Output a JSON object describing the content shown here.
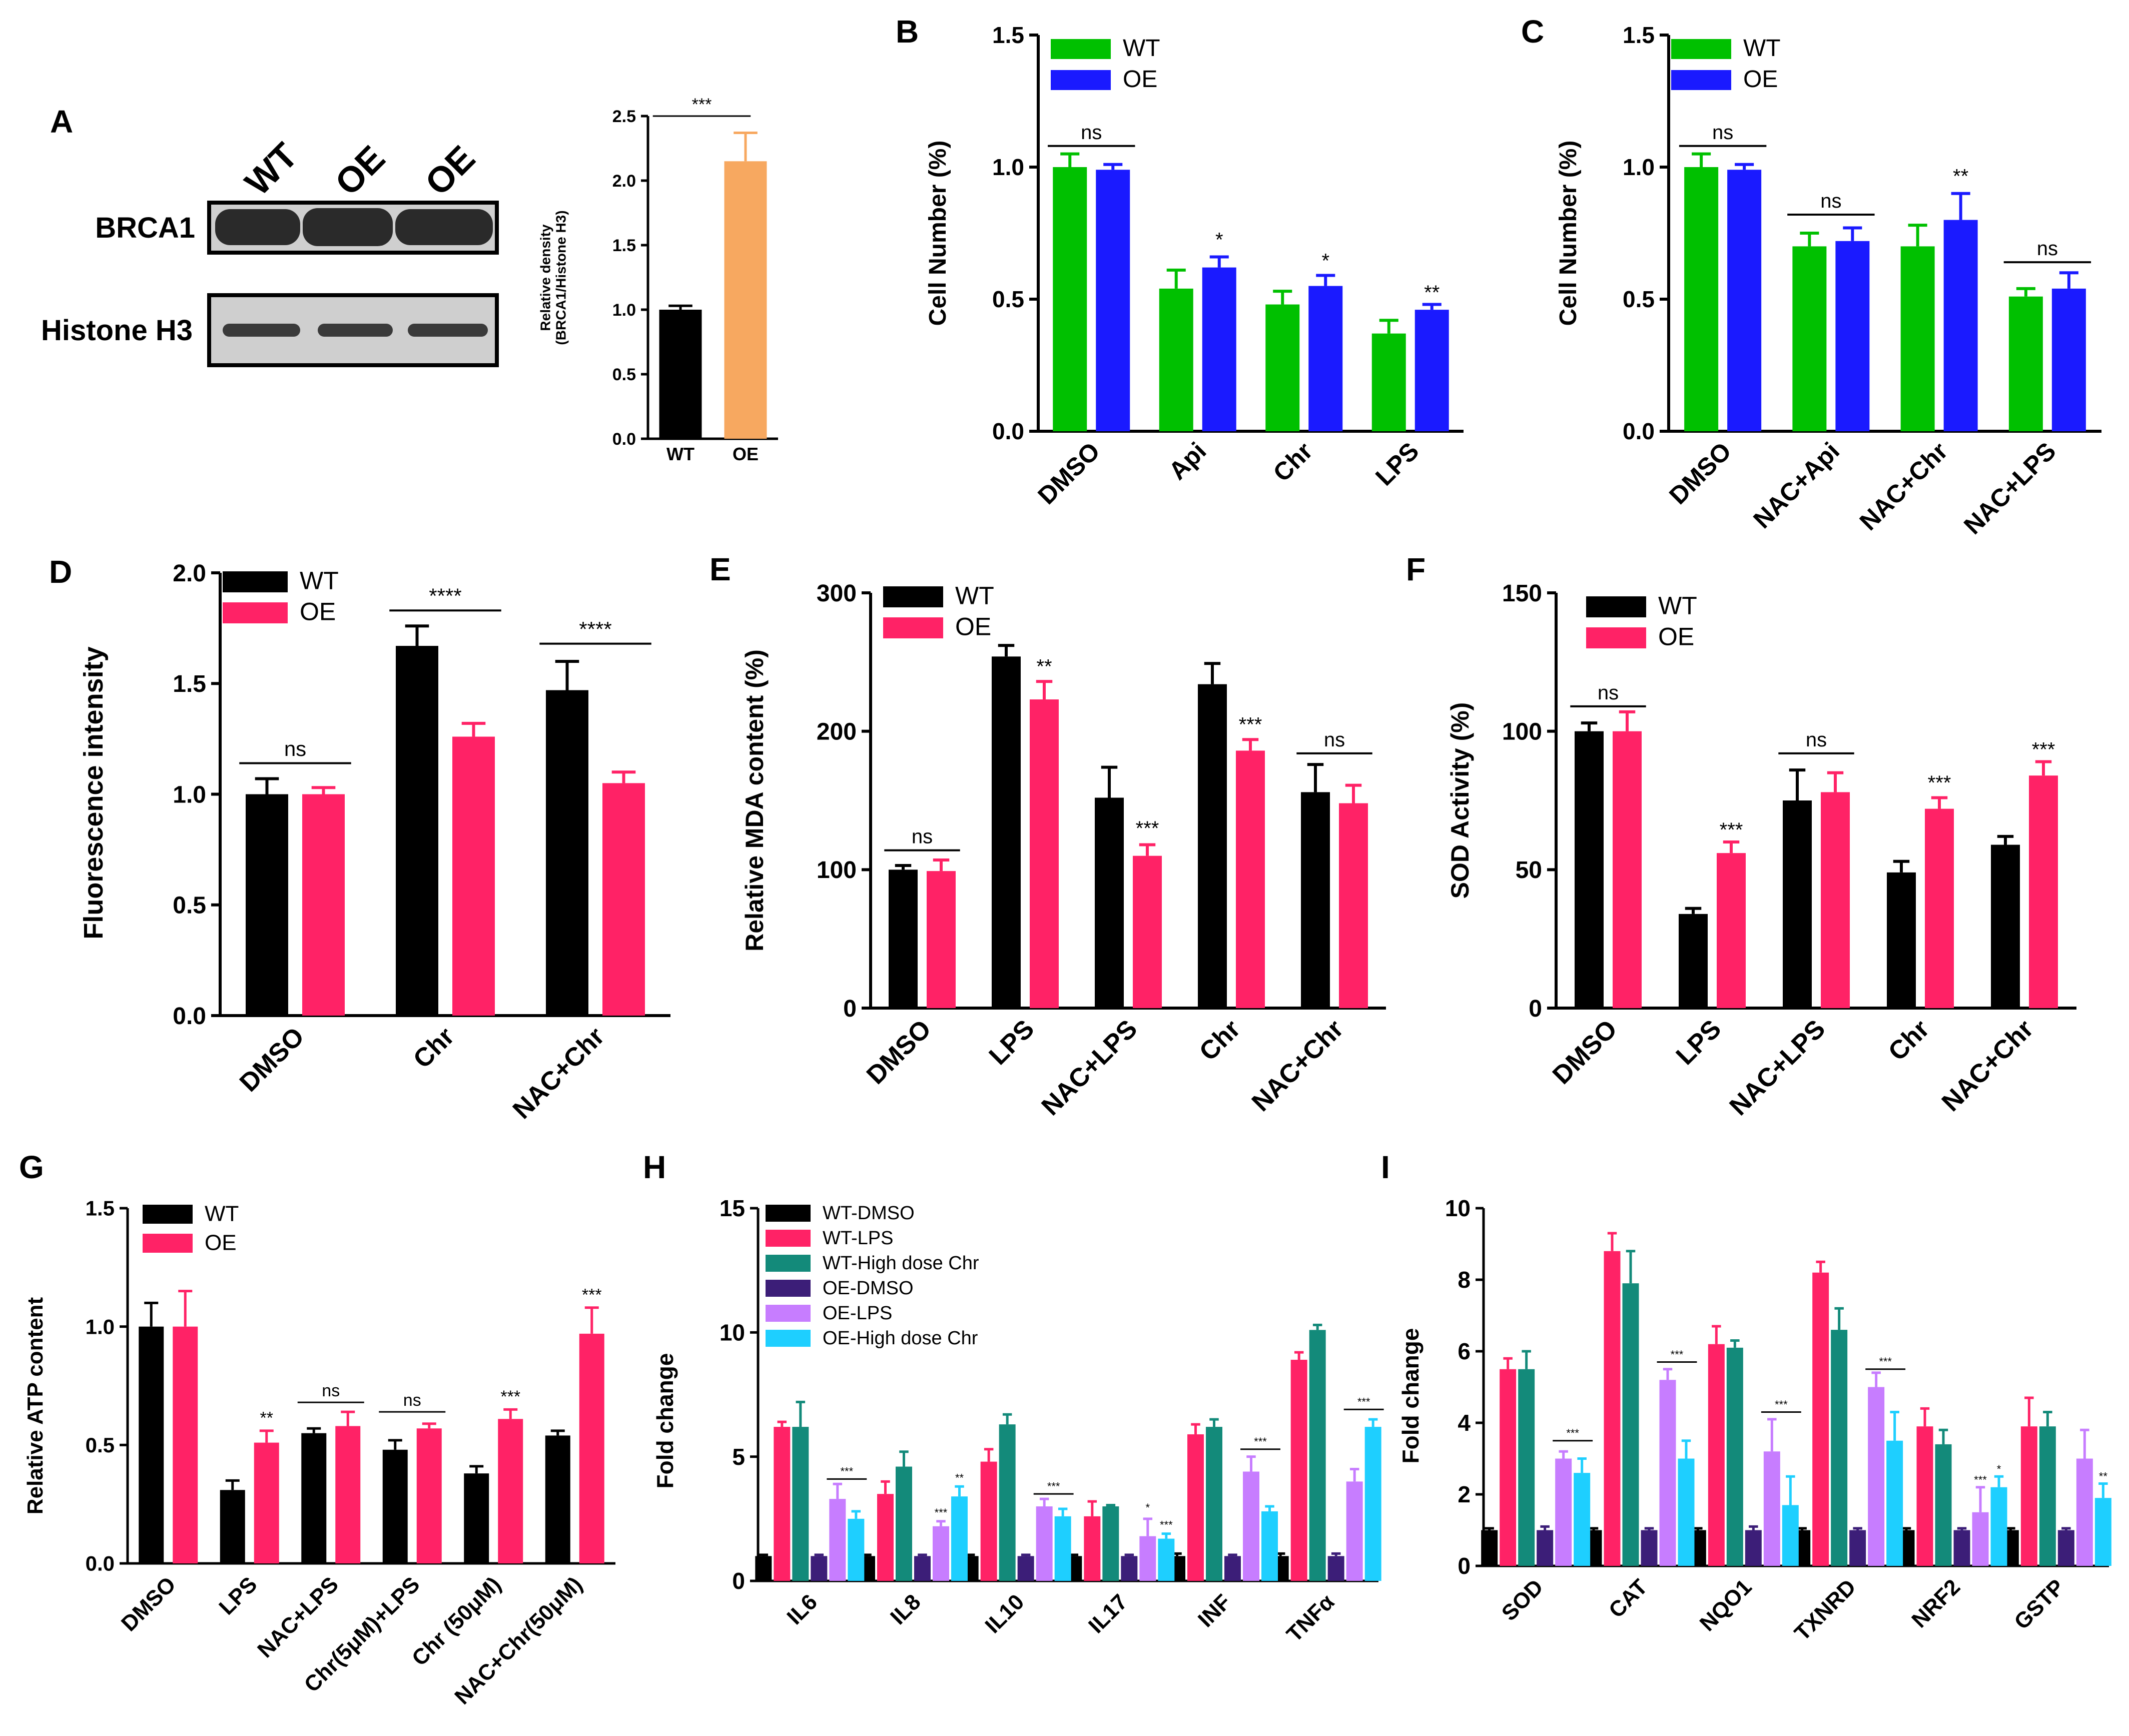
{
  "colors": {
    "black": "#000000",
    "green": "#00c000",
    "blue": "#1a1aff",
    "pink": "#ff2266",
    "orange": "#f7a860",
    "teal": "#138a7a",
    "purple": "#3c1e78",
    "lilac": "#c77dff",
    "cyan": "#1ecfff",
    "blot_bg": "#cfcfcf",
    "blot_band": "#2a2a2a"
  },
  "blot": {
    "letter": "A",
    "lane_labels": [
      "WT",
      "OE",
      "OE"
    ],
    "row_labels": [
      "BRCA1",
      "Histone H3"
    ]
  },
  "chart_data": [
    {
      "id": "A2",
      "type": "bar",
      "letter": "",
      "categories": [
        "WT",
        "OE"
      ],
      "series": [
        {
          "color": "black",
          "values": [
            1.0,
            2.15
          ],
          "errors": [
            0.03,
            0.22
          ]
        }
      ],
      "bar_colors": [
        "black",
        "orange"
      ],
      "ylabel": "Relative density\n(BRCA1/Histone H3)",
      "ylim": [
        0,
        2.5
      ],
      "yticks": [
        "0.0",
        "0.5",
        "1.0",
        "1.5",
        "2.0",
        "2.5"
      ],
      "tick_values": [
        0,
        0.5,
        1,
        1.5,
        2,
        2.5
      ],
      "legend": [],
      "annotations": [
        {
          "group": 0,
          "text": "***",
          "bracket": [
            0,
            1
          ],
          "y": 2.5
        }
      ],
      "xlabel_rotate": false
    },
    {
      "id": "B",
      "type": "bar",
      "letter": "B",
      "categories": [
        "DMSO",
        "Api",
        "Chr",
        "LPS"
      ],
      "series": [
        {
          "name": "WT",
          "color": "green",
          "values": [
            1.0,
            0.54,
            0.48,
            0.37
          ],
          "errors": [
            0.05,
            0.07,
            0.05,
            0.05
          ]
        },
        {
          "name": "OE",
          "color": "blue",
          "values": [
            0.99,
            0.62,
            0.55,
            0.46
          ],
          "errors": [
            0.02,
            0.04,
            0.04,
            0.02
          ]
        }
      ],
      "ylabel": "Cell Number (%)",
      "ylim": [
        0,
        1.5
      ],
      "yticks": [
        "0.0",
        "0.5",
        "1.0",
        "1.5"
      ],
      "tick_values": [
        0,
        0.5,
        1,
        1.5
      ],
      "legend": [
        "WT",
        "OE"
      ],
      "annotations": [
        {
          "group": 0,
          "text": "ns",
          "bracket": [
            0,
            1
          ],
          "y": 1.08
        },
        {
          "group": 1,
          "text": "*",
          "series": 1,
          "y": 0.7
        },
        {
          "group": 2,
          "text": "*",
          "series": 1,
          "y": 0.62
        },
        {
          "group": 3,
          "text": "**",
          "series": 1,
          "y": 0.5
        }
      ],
      "xlabel_rotate": true
    },
    {
      "id": "C",
      "type": "bar",
      "letter": "C",
      "categories": [
        "DMSO",
        "NAC+Api",
        "NAC+Chr",
        "NAC+LPS"
      ],
      "series": [
        {
          "name": "WT",
          "color": "green",
          "values": [
            1.0,
            0.7,
            0.7,
            0.51
          ],
          "errors": [
            0.05,
            0.05,
            0.08,
            0.03
          ]
        },
        {
          "name": "OE",
          "color": "blue",
          "values": [
            0.99,
            0.72,
            0.8,
            0.54
          ],
          "errors": [
            0.02,
            0.05,
            0.1,
            0.06
          ]
        }
      ],
      "ylabel": "Cell Number (%)",
      "ylim": [
        0,
        1.5
      ],
      "yticks": [
        "0.0",
        "0.5",
        "1.0",
        "1.5"
      ],
      "tick_values": [
        0,
        0.5,
        1,
        1.5
      ],
      "legend": [
        "WT",
        "OE"
      ],
      "annotations": [
        {
          "group": 0,
          "text": "ns",
          "bracket": [
            0,
            1
          ],
          "y": 1.08
        },
        {
          "group": 1,
          "text": "ns",
          "bracket": [
            0,
            1
          ],
          "y": 0.82
        },
        {
          "group": 2,
          "text": "**",
          "series": 1,
          "y": 0.94
        },
        {
          "group": 3,
          "text": "ns",
          "bracket": [
            0,
            1
          ],
          "y": 0.64
        }
      ],
      "xlabel_rotate": true
    },
    {
      "id": "D",
      "type": "bar",
      "letter": "D",
      "categories": [
        "DMSO",
        "Chr",
        "NAC+Chr"
      ],
      "series": [
        {
          "name": "WT",
          "color": "black",
          "values": [
            1.0,
            1.67,
            1.47
          ],
          "errors": [
            0.07,
            0.09,
            0.13
          ]
        },
        {
          "name": "OE",
          "color": "pink",
          "values": [
            1.0,
            1.26,
            1.05
          ],
          "errors": [
            0.03,
            0.06,
            0.05
          ]
        }
      ],
      "ylabel": "Fluorescence intensity",
      "ylim": [
        0,
        2.0
      ],
      "yticks": [
        "0.0",
        "0.5",
        "1.0",
        "1.5",
        "2.0"
      ],
      "tick_values": [
        0,
        0.5,
        1,
        1.5,
        2
      ],
      "legend": [
        "WT",
        "OE"
      ],
      "annotations": [
        {
          "group": 0,
          "text": "ns",
          "bracket": [
            0,
            1
          ],
          "y": 1.14
        },
        {
          "group": 1,
          "text": "****",
          "bracket": [
            0,
            1
          ],
          "y": 1.83
        },
        {
          "group": 2,
          "text": "****",
          "bracket": [
            0,
            1
          ],
          "y": 1.68
        }
      ],
      "xlabel_rotate": true
    },
    {
      "id": "E",
      "type": "bar",
      "letter": "E",
      "categories": [
        "DMSO",
        "LPS",
        "NAC+LPS",
        "Chr",
        "NAC+Chr"
      ],
      "series": [
        {
          "name": "WT",
          "color": "black",
          "values": [
            100,
            254,
            152,
            234,
            156
          ],
          "errors": [
            3,
            8,
            22,
            15,
            20
          ]
        },
        {
          "name": "OE",
          "color": "pink",
          "values": [
            99,
            223,
            110,
            186,
            148
          ],
          "errors": [
            8,
            13,
            8,
            8,
            13
          ]
        }
      ],
      "ylabel": "Relative MDA content (%)",
      "ylim": [
        0,
        300
      ],
      "yticks": [
        "0",
        "100",
        "200",
        "300"
      ],
      "tick_values": [
        0,
        100,
        200,
        300
      ],
      "legend": [
        "WT",
        "OE"
      ],
      "annotations": [
        {
          "group": 0,
          "text": "ns",
          "bracket": [
            0,
            1
          ],
          "y": 114
        },
        {
          "group": 1,
          "text": "**",
          "series": 1,
          "y": 242
        },
        {
          "group": 2,
          "text": "***",
          "series": 1,
          "y": 125
        },
        {
          "group": 3,
          "text": "***",
          "series": 1,
          "y": 200
        },
        {
          "group": 4,
          "text": "ns",
          "bracket": [
            0,
            1
          ],
          "y": 184
        }
      ],
      "xlabel_rotate": true
    },
    {
      "id": "F",
      "type": "bar",
      "letter": "F",
      "categories": [
        "DMSO",
        "LPS",
        "NAC+LPS",
        "Chr",
        "NAC+Chr"
      ],
      "series": [
        {
          "name": "WT",
          "color": "black",
          "values": [
            100,
            34,
            75,
            49,
            59
          ],
          "errors": [
            3,
            2,
            11,
            4,
            3
          ]
        },
        {
          "name": "OE",
          "color": "pink",
          "values": [
            100,
            56,
            78,
            72,
            84
          ],
          "errors": [
            7,
            4,
            7,
            4,
            5
          ]
        }
      ],
      "ylabel": "SOD Activity (%)",
      "ylim": [
        0,
        150
      ],
      "yticks": [
        "0",
        "50",
        "100",
        "150"
      ],
      "tick_values": [
        0,
        50,
        100,
        150
      ],
      "legend": [
        "WT",
        "OE"
      ],
      "annotations": [
        {
          "group": 0,
          "text": "ns",
          "bracket": [
            0,
            1
          ],
          "y": 109
        },
        {
          "group": 1,
          "text": "***",
          "series": 1,
          "y": 62
        },
        {
          "group": 2,
          "text": "ns",
          "bracket": [
            0,
            1
          ],
          "y": 92
        },
        {
          "group": 3,
          "text": "***",
          "series": 1,
          "y": 79
        },
        {
          "group": 4,
          "text": "***",
          "series": 1,
          "y": 91
        }
      ],
      "xlabel_rotate": true
    },
    {
      "id": "G",
      "type": "bar",
      "letter": "G",
      "categories": [
        "DMSO",
        "LPS",
        "NAC+LPS",
        "Chr(5μM)+LPS",
        "Chr (50μM)",
        "NAC+Chr(50μM)"
      ],
      "series": [
        {
          "name": "WT",
          "color": "black",
          "values": [
            1.0,
            0.31,
            0.55,
            0.48,
            0.38,
            0.54
          ],
          "errors": [
            0.1,
            0.04,
            0.02,
            0.04,
            0.03,
            0.02
          ]
        },
        {
          "name": "OE",
          "color": "pink",
          "values": [
            1.0,
            0.51,
            0.58,
            0.57,
            0.61,
            0.97
          ],
          "errors": [
            0.15,
            0.05,
            0.06,
            0.02,
            0.04,
            0.11
          ]
        }
      ],
      "ylabel": "Relative ATP  content",
      "ylim": [
        0,
        1.5
      ],
      "yticks": [
        "0.0",
        "0.5",
        "1.0",
        "1.5"
      ],
      "tick_values": [
        0,
        0.5,
        1,
        1.5
      ],
      "legend": [
        "WT",
        "OE"
      ],
      "annotations": [
        {
          "group": 1,
          "text": "**",
          "series": 1,
          "y": 0.59
        },
        {
          "group": 2,
          "text": "ns",
          "bracket": [
            0,
            1
          ],
          "y": 0.68
        },
        {
          "group": 3,
          "text": "ns",
          "bracket": [
            0,
            1
          ],
          "y": 0.64
        },
        {
          "group": 4,
          "text": "***",
          "series": 1,
          "y": 0.68
        },
        {
          "group": 5,
          "text": "***",
          "series": 1,
          "y": 1.11
        }
      ],
      "xlabel_rotate": true
    },
    {
      "id": "H",
      "type": "bar",
      "letter": "H",
      "categories": [
        "IL6",
        "IL8",
        "IL10",
        "IL17",
        "INF",
        "TNFα"
      ],
      "series": [
        {
          "name": "WT-DMSO",
          "color": "black",
          "values": [
            1.0,
            1.0,
            1.0,
            1.0,
            1.0,
            1.0
          ],
          "errors": [
            0.05,
            0.05,
            0.05,
            0.05,
            0.1,
            0.1
          ]
        },
        {
          "name": "WT-LPS",
          "color": "pink",
          "values": [
            6.2,
            3.5,
            4.8,
            2.6,
            5.9,
            8.9
          ],
          "errors": [
            0.2,
            0.5,
            0.5,
            0.6,
            0.4,
            0.3
          ]
        },
        {
          "name": "WT-High dose Chr",
          "color": "teal",
          "values": [
            6.2,
            4.6,
            6.3,
            3.0,
            6.2,
            10.1
          ],
          "errors": [
            1.0,
            0.6,
            0.4,
            0.05,
            0.3,
            0.2
          ]
        },
        {
          "name": "OE-DMSO",
          "color": "purple",
          "values": [
            1.0,
            1.0,
            1.0,
            1.0,
            1.0,
            1.0
          ],
          "errors": [
            0.05,
            0.05,
            0.05,
            0.05,
            0.05,
            0.1
          ]
        },
        {
          "name": "OE-LPS",
          "color": "lilac",
          "values": [
            3.3,
            2.2,
            3.0,
            1.8,
            4.4,
            4.0
          ],
          "errors": [
            0.6,
            0.2,
            0.3,
            0.7,
            0.6,
            0.5
          ]
        },
        {
          "name": "OE-High dose Chr",
          "color": "cyan",
          "values": [
            2.5,
            3.4,
            2.6,
            1.7,
            2.8,
            6.2
          ],
          "errors": [
            0.3,
            0.4,
            0.3,
            0.2,
            0.2,
            0.3
          ]
        }
      ],
      "ylabel": "Fold change",
      "ylim": [
        0,
        15
      ],
      "yticks": [
        "0",
        "5",
        "10",
        "15"
      ],
      "tick_values": [
        0,
        5,
        10,
        15
      ],
      "legend": [
        "WT-DMSO",
        "WT-LPS",
        "WT-High dose Chr",
        "OE-DMSO",
        "OE-LPS",
        "OE-High dose Chr"
      ],
      "annotations": [
        {
          "group": 0,
          "text": "***",
          "bracket": [
            4,
            5
          ],
          "y": 4.1
        },
        {
          "group": 1,
          "text": "***",
          "series": 4,
          "y": 2.6
        },
        {
          "group": 1,
          "text": "**",
          "series": 5,
          "y": 4.0
        },
        {
          "group": 2,
          "text": "***",
          "bracket": [
            4,
            5
          ],
          "y": 3.5
        },
        {
          "group": 3,
          "text": "*",
          "series": 4,
          "y": 2.8
        },
        {
          "group": 3,
          "text": "***",
          "series": 5,
          "y": 2.1
        },
        {
          "group": 4,
          "text": "***",
          "bracket": [
            4,
            5
          ],
          "y": 5.3
        },
        {
          "group": 5,
          "text": "***",
          "bracket": [
            4,
            5
          ],
          "y": 6.9
        }
      ],
      "xlabel_rotate": true
    },
    {
      "id": "I",
      "type": "bar",
      "letter": "I",
      "categories": [
        "SOD",
        "CAT",
        "NQO1",
        "TXNRD",
        "NRF2",
        "GSTP"
      ],
      "series": [
        {
          "color": "black",
          "values": [
            1.0,
            1.0,
            1.0,
            1.0,
            1.0,
            1.0
          ],
          "errors": [
            0.05,
            0.05,
            0.05,
            0.05,
            0.05,
            0.05
          ]
        },
        {
          "color": "pink",
          "values": [
            5.5,
            8.8,
            6.2,
            8.2,
            3.9,
            3.9
          ],
          "errors": [
            0.3,
            0.5,
            0.5,
            0.3,
            0.5,
            0.8
          ]
        },
        {
          "color": "teal",
          "values": [
            5.5,
            7.9,
            6.1,
            6.6,
            3.4,
            3.9
          ],
          "errors": [
            0.5,
            0.9,
            0.2,
            0.6,
            0.4,
            0.4
          ]
        },
        {
          "color": "purple",
          "values": [
            1.0,
            1.0,
            1.0,
            1.0,
            1.0,
            1.0
          ],
          "errors": [
            0.1,
            0.05,
            0.1,
            0.05,
            0.05,
            0.05
          ]
        },
        {
          "color": "lilac",
          "values": [
            3.0,
            5.2,
            3.2,
            5.0,
            1.5,
            3.0
          ],
          "errors": [
            0.2,
            0.3,
            0.9,
            0.4,
            0.7,
            0.8
          ]
        },
        {
          "color": "cyan",
          "values": [
            2.6,
            3.0,
            1.7,
            3.5,
            2.2,
            1.9
          ],
          "errors": [
            0.4,
            0.5,
            0.8,
            0.8,
            0.3,
            0.4
          ]
        }
      ],
      "ylabel": "Fold change",
      "ylim": [
        0,
        10
      ],
      "yticks": [
        "0",
        "2",
        "4",
        "6",
        "8",
        "10"
      ],
      "tick_values": [
        0,
        2,
        4,
        6,
        8,
        10
      ],
      "legend": [],
      "annotations": [
        {
          "group": 0,
          "text": "***",
          "bracket": [
            4,
            5
          ],
          "y": 3.5
        },
        {
          "group": 1,
          "text": "***",
          "bracket": [
            4,
            5
          ],
          "y": 5.7
        },
        {
          "group": 2,
          "text": "***",
          "bracket": [
            4,
            5
          ],
          "y": 4.3
        },
        {
          "group": 3,
          "text": "***",
          "bracket": [
            4,
            5
          ],
          "y": 5.5
        },
        {
          "group": 4,
          "text": "***",
          "series": 4,
          "y": 2.3
        },
        {
          "group": 4,
          "text": "*",
          "series": 5,
          "y": 2.6
        },
        {
          "group": 5,
          "text": "**",
          "series": 5,
          "y": 2.4
        }
      ],
      "xlabel_rotate": true
    }
  ]
}
